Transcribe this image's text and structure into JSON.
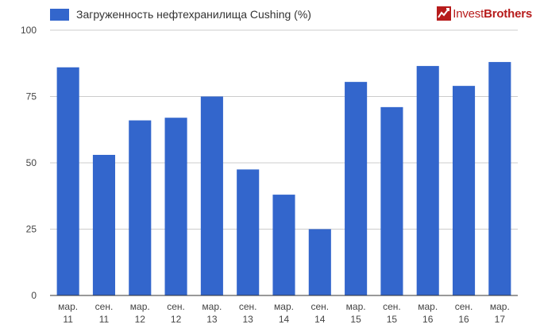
{
  "brand": {
    "name_part1": "Invest",
    "name_part2": "Brothers",
    "logo_icon": "chart-arrow-icon",
    "color": "#b71c1c"
  },
  "chart_data": {
    "type": "bar",
    "categories": [
      [
        "мар.",
        "11"
      ],
      [
        "сен.",
        "11"
      ],
      [
        "мар.",
        "12"
      ],
      [
        "сен.",
        "12"
      ],
      [
        "мар.",
        "13"
      ],
      [
        "сен.",
        "13"
      ],
      [
        "мар.",
        "14"
      ],
      [
        "сен.",
        "14"
      ],
      [
        "мар.",
        "15"
      ],
      [
        "сен.",
        "15"
      ],
      [
        "мар.",
        "16"
      ],
      [
        "сен.",
        "16"
      ],
      [
        "мар.",
        "17"
      ]
    ],
    "series": [
      {
        "name": "Загруженность нефтехранилища Cushing (%)",
        "color": "#3366cc",
        "values": [
          86,
          53,
          66,
          67,
          75,
          47.5,
          38,
          25,
          80.5,
          71,
          86.5,
          79,
          88
        ]
      }
    ],
    "ylim": [
      0,
      100
    ],
    "yticks": [
      0,
      25,
      50,
      75,
      100
    ],
    "grid": true,
    "legend_position": "top-left",
    "title": "",
    "xlabel": "",
    "ylabel": ""
  }
}
